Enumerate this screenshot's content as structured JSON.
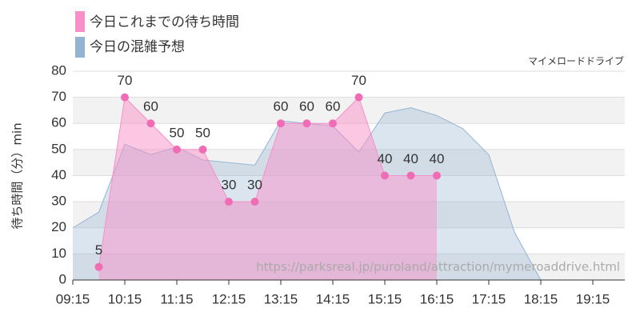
{
  "chart_data": {
    "type": "area",
    "source": "マイメロードドライブ",
    "url": "https://parksreal.jp/puroland/attraction/mymeroaddrive.html",
    "y_label": "待ち時間（分）min",
    "categories": [
      "09:15",
      null,
      "10:15",
      null,
      "11:15",
      null,
      "12:15",
      null,
      "13:15",
      null,
      "14:15",
      null,
      "15:15",
      null,
      "16:15",
      null,
      "17:15",
      null,
      "18:15",
      null,
      "19:15",
      null
    ],
    "series": [
      {
        "name": "今日これまでの待ち時間",
        "color": "#f78fc8",
        "values": [
          null,
          5,
          70,
          60,
          50,
          50,
          30,
          30,
          60,
          60,
          60,
          70,
          40,
          40,
          40,
          null,
          null,
          null,
          null,
          null,
          null,
          null
        ]
      },
      {
        "name": "今日の混雑予想",
        "color": "#94b4d4",
        "values": [
          20,
          26,
          52,
          48,
          51,
          46,
          45,
          44,
          61,
          60,
          59,
          49,
          64,
          66,
          63,
          58,
          48,
          18,
          0,
          0,
          0,
          0
        ]
      }
    ],
    "ylim": [
      0,
      80
    ],
    "yticks": [
      0,
      10,
      20,
      30,
      40,
      50,
      60,
      70,
      80
    ],
    "grid": true
  }
}
